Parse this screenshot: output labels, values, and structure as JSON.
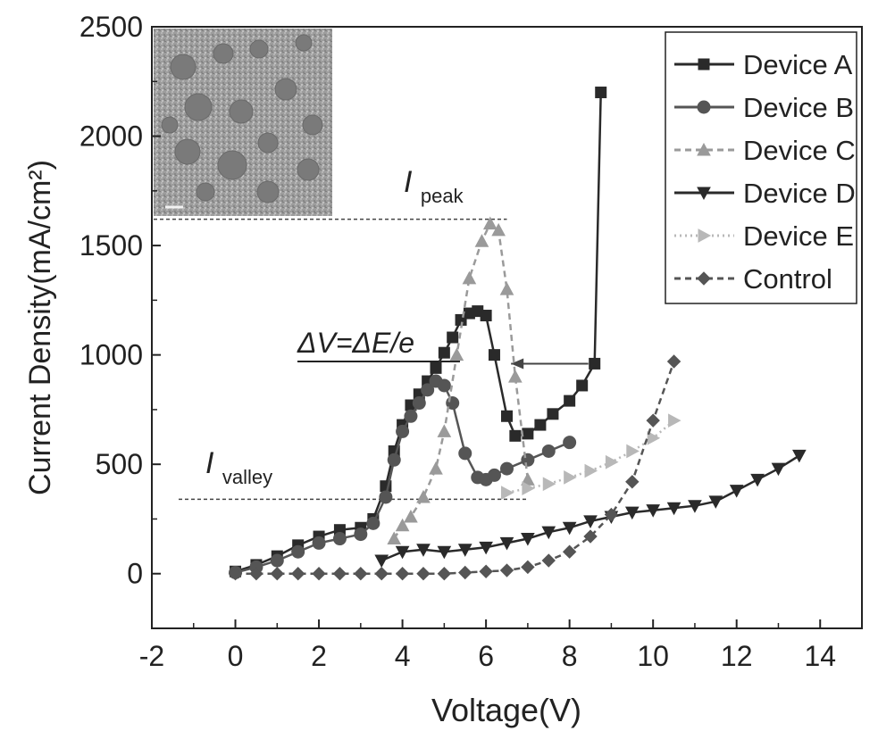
{
  "chart_data": {
    "type": "line",
    "title": "",
    "xlabel": "Voltage(V)",
    "ylabel": "Current Density(mA/cm²)",
    "xlim": [
      -2,
      15
    ],
    "ylim": [
      -250,
      2500
    ],
    "xticks": [
      -2,
      0,
      2,
      4,
      6,
      8,
      10,
      12,
      14
    ],
    "yticks": [
      0,
      500,
      1000,
      1500,
      2000,
      2500
    ],
    "grid": false,
    "legend_position": "top-right",
    "series": [
      {
        "name": "Device A",
        "marker": "square",
        "line": "solid",
        "color": "#2a2a2a",
        "x": [
          0,
          0.5,
          1,
          1.5,
          2,
          2.5,
          3,
          3.3,
          3.6,
          3.8,
          4,
          4.2,
          4.4,
          4.6,
          4.8,
          5,
          5.2,
          5.4,
          5.6,
          5.8,
          6,
          6.2,
          6.5,
          6.7,
          7,
          7.3,
          7.6,
          8,
          8.3,
          8.6,
          8.75
        ],
        "y": [
          10,
          40,
          80,
          130,
          170,
          200,
          210,
          250,
          400,
          560,
          680,
          770,
          820,
          880,
          940,
          1010,
          1080,
          1160,
          1190,
          1200,
          1180,
          1000,
          720,
          630,
          640,
          680,
          730,
          790,
          860,
          960,
          2200
        ]
      },
      {
        "name": "Device B",
        "marker": "circle",
        "line": "solid",
        "color": "#555555",
        "x": [
          0,
          0.5,
          1,
          1.5,
          2,
          2.5,
          3,
          3.3,
          3.6,
          3.8,
          4,
          4.2,
          4.4,
          4.6,
          4.8,
          5,
          5.2,
          5.5,
          5.8,
          6,
          6.2,
          6.5,
          7,
          7.5,
          8
        ],
        "y": [
          5,
          30,
          60,
          100,
          140,
          160,
          180,
          230,
          350,
          520,
          650,
          720,
          780,
          840,
          880,
          860,
          780,
          550,
          440,
          430,
          450,
          480,
          520,
          560,
          600
        ]
      },
      {
        "name": "Device C",
        "marker": "triangle-up",
        "line": "dashed",
        "color": "#9a9a9a",
        "x": [
          3.8,
          4,
          4.2,
          4.5,
          4.8,
          5,
          5.3,
          5.6,
          5.9,
          6.1,
          6.3,
          6.5,
          6.7,
          7
        ],
        "y": [
          160,
          220,
          260,
          350,
          480,
          650,
          1000,
          1350,
          1520,
          1600,
          1570,
          1300,
          900,
          430
        ]
      },
      {
        "name": "Device D",
        "marker": "triangle-down",
        "line": "solid",
        "color": "#2a2a2a",
        "x": [
          3.5,
          4,
          4.5,
          5,
          5.5,
          6,
          6.5,
          7,
          7.5,
          8,
          8.5,
          9,
          9.5,
          10,
          10.5,
          11,
          11.5,
          12,
          12.5,
          13,
          13.5
        ],
        "y": [
          60,
          100,
          110,
          100,
          110,
          120,
          140,
          160,
          190,
          210,
          240,
          260,
          280,
          290,
          300,
          310,
          330,
          380,
          430,
          480,
          540
        ]
      },
      {
        "name": "Device E",
        "marker": "triangle-right",
        "line": "dotted",
        "color": "#b8b8b8",
        "x": [
          6.5,
          7,
          7.5,
          8,
          8.5,
          9,
          9.5,
          10,
          10.5
        ],
        "y": [
          370,
          390,
          410,
          440,
          470,
          510,
          560,
          620,
          700
        ]
      },
      {
        "name": "Control",
        "marker": "diamond",
        "line": "dashed",
        "color": "#555555",
        "x": [
          0,
          0.5,
          1,
          1.5,
          2,
          2.5,
          3,
          3.5,
          4,
          4.5,
          5,
          5.5,
          6,
          6.5,
          7,
          7.5,
          8,
          8.5,
          9,
          9.5,
          10,
          10.5
        ],
        "y": [
          0,
          0,
          0,
          0,
          0,
          0,
          0,
          0,
          0,
          0,
          0,
          5,
          10,
          15,
          30,
          60,
          100,
          170,
          270,
          420,
          700,
          970
        ]
      }
    ],
    "annotations": {
      "peak_label": "I",
      "peak_sub": "peak",
      "peak_level": 1620,
      "valley_label": "I",
      "valley_sub": "valley",
      "valley_level": 340,
      "delta_label": "ΔV=ΔE/e",
      "arrow_y": 960,
      "arrow_x_from": 6.6,
      "arrow_x_to": 8.45
    },
    "inset": "TEM image of nanocrystals (top-left)"
  }
}
